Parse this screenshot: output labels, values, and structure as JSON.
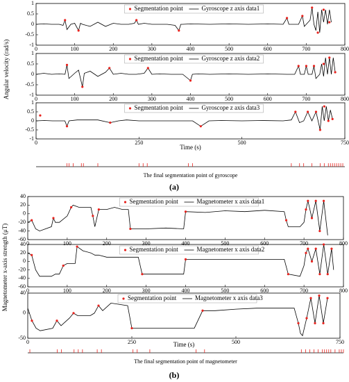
{
  "panel_labels": [
    "(a)",
    "(b)"
  ],
  "chart_data": [
    {
      "type": "line",
      "ylabel": "Angular velocity (rad/s)",
      "xlim": [
        0,
        800
      ],
      "xticks": [
        0,
        100,
        200,
        300,
        400,
        500,
        600,
        700,
        800
      ],
      "ylim": [
        -1,
        1
      ],
      "yticks": [
        -1,
        -0.5,
        0,
        0.5,
        1
      ],
      "series": [
        {
          "name": "Segmentation point",
          "mode": "markers",
          "color": "#e8231e",
          "x": [
            75,
            110,
            260,
            370,
            650,
            690,
            715,
            730,
            745,
            760
          ],
          "values": [
            0.2,
            -0.3,
            0.2,
            -0.3,
            0.3,
            0.4,
            0.8,
            -0.4,
            0.7,
            0.1
          ]
        },
        {
          "name": "Gyroscope z axis data1",
          "mode": "lines",
          "color": "#000000",
          "x": [
            0,
            20,
            40,
            60,
            70,
            75,
            80,
            90,
            100,
            110,
            115,
            120,
            140,
            160,
            180,
            200,
            220,
            240,
            255,
            260,
            265,
            280,
            300,
            320,
            340,
            360,
            370,
            375,
            380,
            400,
            450,
            500,
            550,
            600,
            640,
            650,
            655,
            660,
            680,
            690,
            695,
            700,
            710,
            715,
            720,
            725,
            730,
            735,
            740,
            745,
            750,
            755,
            760,
            765
          ],
          "values": [
            0,
            0.02,
            0,
            0,
            -0.05,
            0.2,
            -0.25,
            0,
            0.05,
            -0.3,
            0.05,
            0,
            -0.1,
            0.1,
            -0.1,
            0.05,
            0,
            0,
            0.05,
            0.2,
            0,
            0.05,
            0,
            0,
            0,
            -0.05,
            -0.3,
            0,
            0,
            0.02,
            0,
            0.02,
            0,
            0.02,
            0,
            0.3,
            0,
            0,
            0,
            0.4,
            -0.1,
            0,
            0.2,
            0.8,
            0,
            -0.3,
            0.6,
            -0.4,
            0.7,
            0.1,
            0.7,
            0,
            0.7,
            0.1
          ]
        }
      ]
    },
    {
      "type": "line",
      "xlim": [
        0,
        800
      ],
      "xticks": [
        0,
        100,
        200,
        300,
        400,
        500,
        600,
        700,
        800
      ],
      "ylim": [
        -1,
        1
      ],
      "yticks": [
        -1,
        -0.5,
        0,
        0.5,
        1
      ],
      "series": [
        {
          "name": "Segmentation point",
          "mode": "markers",
          "color": "#e8231e",
          "x": [
            80,
            120,
            190,
            290,
            400,
            680,
            700,
            720,
            745,
            760,
            775
          ],
          "values": [
            0.45,
            -0.6,
            0.3,
            0.3,
            -0.3,
            0.4,
            0.4,
            0.4,
            0.5,
            0.8,
            0.1
          ]
        },
        {
          "name": "Gyroscope z axis data2",
          "mode": "lines",
          "color": "#000000",
          "x": [
            0,
            20,
            40,
            60,
            75,
            80,
            85,
            100,
            110,
            120,
            125,
            140,
            160,
            180,
            190,
            200,
            220,
            240,
            260,
            280,
            290,
            300,
            320,
            350,
            380,
            400,
            405,
            420,
            450,
            500,
            550,
            600,
            650,
            670,
            680,
            685,
            695,
            700,
            705,
            715,
            720,
            725,
            735,
            740,
            745,
            750,
            755,
            760,
            765,
            770,
            775
          ],
          "values": [
            0,
            0.05,
            0,
            0.02,
            0,
            0.45,
            -0.2,
            0.05,
            0.2,
            -0.6,
            0.05,
            0.15,
            -0.1,
            0.1,
            0.3,
            0,
            0.05,
            0,
            0,
            0.05,
            0.3,
            0,
            0.02,
            0,
            0,
            -0.3,
            0,
            0.02,
            0,
            0.02,
            0,
            0.02,
            0,
            0,
            0.4,
            0,
            0,
            0.4,
            0,
            0,
            0.4,
            -0.2,
            0,
            0.5,
            -0.1,
            0.8,
            0,
            0.8,
            0,
            0.8,
            0.1
          ]
        }
      ]
    },
    {
      "type": "line",
      "xlabel": "Time (s)",
      "xlim": [
        0,
        750
      ],
      "xticks": [
        0,
        250,
        500,
        750
      ],
      "ylim": [
        -1,
        1
      ],
      "yticks": [
        -1,
        -0.5,
        0,
        0.5,
        1
      ],
      "series": [
        {
          "name": "Segmentation point",
          "mode": "markers",
          "color": "#e8231e",
          "x": [
            10,
            75,
            180,
            400,
            630,
            660,
            680,
            690,
            700,
            710,
            720
          ],
          "values": [
            0.3,
            -0.3,
            -0.1,
            -0.3,
            0.5,
            0.5,
            0.5,
            -0.5,
            0.8,
            0,
            0.1
          ]
        },
        {
          "name": "Gyroscope z axis data3",
          "mode": "lines",
          "color": "#000000",
          "x": [
            0,
            20,
            40,
            60,
            70,
            75,
            80,
            100,
            150,
            180,
            200,
            220,
            250,
            300,
            350,
            380,
            400,
            420,
            450,
            500,
            550,
            600,
            620,
            630,
            640,
            650,
            660,
            670,
            680,
            690,
            695,
            700,
            705,
            710,
            715,
            720
          ],
          "values": [
            0,
            0.02,
            0,
            0,
            0,
            -0.3,
            0,
            0.05,
            0.05,
            -0.1,
            0,
            0.05,
            0,
            0,
            0,
            0,
            -0.3,
            0,
            0.02,
            0,
            0.02,
            0,
            0.05,
            0.5,
            -0.1,
            0,
            0.5,
            0,
            0.5,
            -0.5,
            0.8,
            0,
            0.8,
            0,
            0.6,
            0.1
          ]
        }
      ]
    },
    {
      "type": "rug",
      "xlabel": "The final segmentation point of gyroscope",
      "color": "#e8231e",
      "xlim": [
        0,
        750
      ],
      "values": [
        75,
        80,
        90,
        110,
        115,
        150,
        250,
        260,
        270,
        370,
        380,
        620,
        640,
        650,
        670,
        690,
        700,
        710,
        715,
        720,
        725,
        730,
        735,
        740,
        745
      ]
    },
    {
      "type": "line",
      "xlim": [
        0,
        800
      ],
      "xticks": [
        0,
        100,
        200,
        300,
        400,
        500,
        600,
        700,
        800
      ],
      "ylim": [
        -60,
        40
      ],
      "yticks": [
        -60,
        -40,
        -20,
        0,
        20,
        40
      ],
      "series": [
        {
          "name": "Segmentation point",
          "mode": "markers",
          "color": "#e8231e",
          "x": [
            10,
            65,
            110,
            165,
            180,
            260,
            400,
            655,
            705,
            710,
            720,
            730,
            740,
            750
          ],
          "values": [
            -15,
            -10,
            15,
            -5,
            10,
            -35,
            5,
            -15,
            10,
            30,
            -10,
            30,
            -40,
            30
          ]
        },
        {
          "name": "Magnetometer x axis data1",
          "mode": "lines",
          "color": "#000000",
          "x": [
            0,
            10,
            20,
            30,
            60,
            65,
            70,
            80,
            100,
            110,
            115,
            130,
            160,
            165,
            170,
            180,
            200,
            220,
            240,
            255,
            260,
            300,
            350,
            395,
            400,
            450,
            500,
            550,
            600,
            650,
            655,
            660,
            690,
            700,
            705,
            710,
            720,
            730,
            740,
            750,
            760
          ],
          "values": [
            -20,
            -15,
            -35,
            -40,
            -30,
            -10,
            -20,
            -20,
            -5,
            15,
            20,
            15,
            15,
            -5,
            -30,
            10,
            10,
            15,
            10,
            10,
            -35,
            -35,
            -33,
            -35,
            5,
            3,
            7,
            5,
            8,
            5,
            -15,
            -30,
            -30,
            -20,
            10,
            30,
            -10,
            30,
            -40,
            30,
            -50
          ]
        }
      ]
    },
    {
      "type": "line",
      "ylabel": "Magnetometer x-axis strength (μT)",
      "xlim": [
        0,
        800
      ],
      "xticks": [
        0,
        100,
        200,
        300,
        400,
        500,
        600,
        700,
        800
      ],
      "ylim": [
        -60,
        40
      ],
      "yticks": [
        -60,
        -40,
        -20,
        0,
        20,
        40
      ],
      "series": [
        {
          "name": "Segmentation point",
          "mode": "markers",
          "color": "#e8231e",
          "x": [
            10,
            90,
            125,
            290,
            400,
            660,
            705,
            710,
            720,
            730,
            740,
            750,
            760,
            770
          ],
          "values": [
            15,
            -10,
            35,
            -30,
            5,
            -30,
            20,
            30,
            0,
            30,
            -30,
            40,
            -30,
            30
          ]
        },
        {
          "name": "Magnetometer x axis data2",
          "mode": "lines",
          "color": "#000000",
          "x": [
            0,
            10,
            20,
            30,
            60,
            70,
            80,
            90,
            100,
            120,
            125,
            140,
            160,
            170,
            180,
            200,
            220,
            240,
            280,
            290,
            300,
            350,
            395,
            400,
            450,
            500,
            550,
            600,
            650,
            660,
            690,
            700,
            705,
            710,
            720,
            730,
            740,
            750,
            760,
            770,
            775
          ],
          "values": [
            20,
            15,
            -20,
            -35,
            -35,
            -30,
            -30,
            -10,
            -5,
            -5,
            35,
            25,
            20,
            15,
            15,
            10,
            10,
            10,
            10,
            -30,
            -30,
            -30,
            -30,
            5,
            5,
            5,
            5,
            5,
            5,
            -30,
            -35,
            -10,
            20,
            30,
            0,
            30,
            -30,
            40,
            -30,
            30,
            -20
          ]
        }
      ]
    },
    {
      "type": "line",
      "xlabel": "Time (s)",
      "xlim": [
        0,
        750
      ],
      "xticks": [
        0,
        250,
        500,
        750
      ],
      "ylim": [
        -50,
        40
      ],
      "yticks": [
        -50,
        0,
        40
      ],
      "series": [
        {
          "name": "Segmentation point",
          "mode": "markers",
          "color": "#e8231e",
          "x": [
            10,
            70,
            110,
            170,
            250,
            420,
            650,
            670,
            680,
            690,
            700,
            710,
            720
          ],
          "values": [
            -15,
            -15,
            0,
            15,
            -30,
            5,
            -20,
            -10,
            30,
            -20,
            35,
            -20,
            30
          ]
        },
        {
          "name": "Magnetometer x axis data3",
          "mode": "lines",
          "color": "#000000",
          "x": [
            0,
            10,
            20,
            30,
            60,
            70,
            80,
            100,
            110,
            120,
            150,
            160,
            170,
            180,
            200,
            240,
            250,
            300,
            350,
            400,
            420,
            450,
            500,
            550,
            600,
            620,
            640,
            650,
            655,
            660,
            670,
            680,
            690,
            700,
            710,
            720
          ],
          "values": [
            10,
            -15,
            -30,
            -35,
            -30,
            -15,
            -25,
            -10,
            0,
            -5,
            -5,
            0,
            15,
            5,
            20,
            15,
            -30,
            -30,
            -30,
            -30,
            5,
            5,
            8,
            10,
            10,
            10,
            10,
            -20,
            -40,
            -45,
            -10,
            30,
            -20,
            35,
            -20,
            30
          ]
        }
      ]
    },
    {
      "type": "rug",
      "xlabel": "The final segmentation point of magnetometer",
      "color": "#e8231e",
      "xlim": [
        0,
        750
      ],
      "values": [
        5,
        70,
        80,
        110,
        120,
        130,
        165,
        175,
        250,
        260,
        290,
        400,
        420,
        650,
        660,
        670,
        680,
        690,
        700,
        705,
        710,
        715,
        720,
        730,
        740,
        745,
        750
      ]
    }
  ]
}
